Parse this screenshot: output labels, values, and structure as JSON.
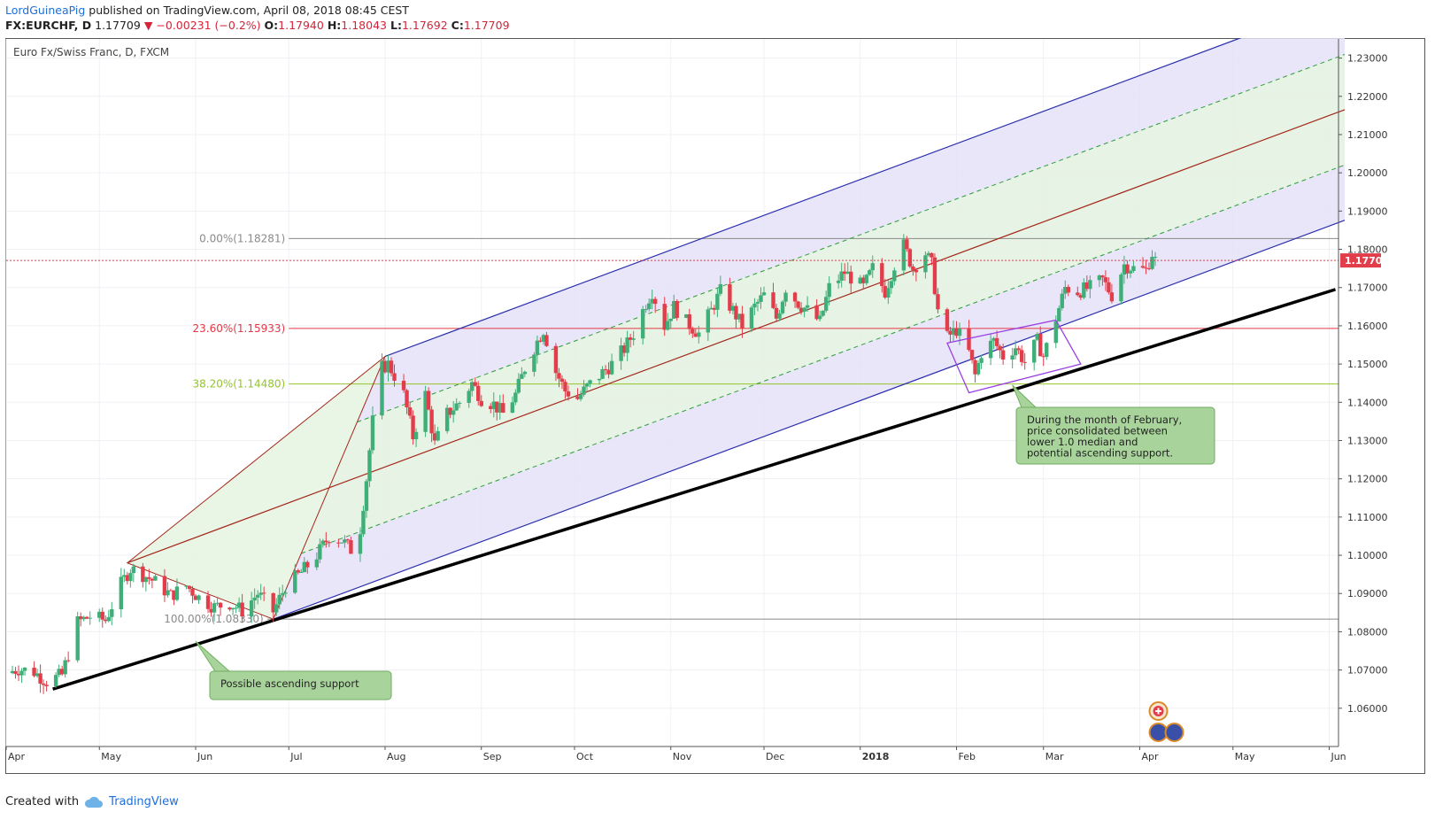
{
  "header": {
    "author": "LordGuineaPig",
    "published_text": " published on TradingView.com, April 08, 2018 08:45 CEST",
    "symbol": "FX:EURCHF, D",
    "last": "1.17709",
    "change": "▼ −0.00231 (−0.2%)",
    "o_label": "O:",
    "o": "1.17940",
    "h_label": "H:",
    "h": "1.18043",
    "l_label": "L:",
    "l": "1.17692",
    "c_label": "C:",
    "c": "1.17709"
  },
  "footer": {
    "created_with": "Created with",
    "brand": "TradingView"
  },
  "colors": {
    "up": "#3fae78",
    "down": "#e23d4a",
    "pitchfork_outer": "#2a2fae",
    "pitchfork_median": "#a3271b",
    "pitchfork_inner": "#2e9e3a",
    "fill_outer": "#e4e2f7",
    "fill_inner": "#e6f5e1",
    "fib_0": "#8a8a8a",
    "fib_236": "#e63745",
    "fib_382": "#93c42d",
    "fib_100": "#8a8a8a",
    "price_badge": "#e23d4a",
    "annotation_bg": "#a8d49b",
    "annotation_border": "#6fae5f",
    "consolidation_box": "#9a3ee3"
  },
  "chart_data": {
    "type": "candlestick",
    "title": "Euro Fx/Swiss Franc, D, FXCM",
    "timeframe": "D",
    "x_range": [
      "2017-04-01",
      "2018-06-04"
    ],
    "y_range": [
      1.05,
      1.235
    ],
    "y_ticks": [
      "1.23000",
      "1.22000",
      "1.21000",
      "1.20000",
      "1.19000",
      "1.18000",
      "1.17000",
      "1.16000",
      "1.15000",
      "1.14000",
      "1.13000",
      "1.12000",
      "1.11000",
      "1.10000",
      "1.09000",
      "1.08000",
      "1.07000",
      "1.06000"
    ],
    "x_ticks": [
      {
        "label": "Apr",
        "date": "2017-04-01"
      },
      {
        "label": "May",
        "date": "2017-05-01"
      },
      {
        "label": "Jun",
        "date": "2017-06-01"
      },
      {
        "label": "Jul",
        "date": "2017-07-01"
      },
      {
        "label": "Aug",
        "date": "2017-08-01"
      },
      {
        "label": "Sep",
        "date": "2017-09-01"
      },
      {
        "label": "Oct",
        "date": "2017-10-01"
      },
      {
        "label": "Nov",
        "date": "2017-11-01"
      },
      {
        "label": "Dec",
        "date": "2017-12-01"
      },
      {
        "label": "2018",
        "date": "2018-01-01"
      },
      {
        "label": "Feb",
        "date": "2018-02-01"
      },
      {
        "label": "Mar",
        "date": "2018-03-01"
      },
      {
        "label": "Apr",
        "date": "2018-04-01"
      },
      {
        "label": "May",
        "date": "2018-05-01"
      },
      {
        "label": "Jun",
        "date": "2018-06-01"
      }
    ],
    "close_path": [
      [
        "2017-04-01",
        1.0692
      ],
      [
        "2017-04-05",
        1.0703
      ],
      [
        "2017-04-10",
        1.0695
      ],
      [
        "2017-04-14",
        1.067
      ],
      [
        "2017-04-19",
        1.0687
      ],
      [
        "2017-04-24",
        1.0825
      ],
      [
        "2017-04-28",
        1.084
      ],
      [
        "2017-05-03",
        1.083
      ],
      [
        "2017-05-08",
        1.0925
      ],
      [
        "2017-05-11",
        1.0965
      ],
      [
        "2017-05-15",
        1.095
      ],
      [
        "2017-05-19",
        1.093
      ],
      [
        "2017-05-24",
        1.0895
      ],
      [
        "2017-05-29",
        1.092
      ],
      [
        "2017-06-02",
        1.089
      ],
      [
        "2017-06-07",
        1.0865
      ],
      [
        "2017-06-12",
        1.0875
      ],
      [
        "2017-06-16",
        1.0855
      ],
      [
        "2017-06-21",
        1.09
      ],
      [
        "2017-06-26",
        1.0853
      ],
      [
        "2017-06-30",
        1.092
      ],
      [
        "2017-07-05",
        1.0955
      ],
      [
        "2017-07-10",
        1.1
      ],
      [
        "2017-07-14",
        1.105
      ],
      [
        "2017-07-18",
        1.104
      ],
      [
        "2017-07-21",
        1.1015
      ],
      [
        "2017-07-24",
        1.107
      ],
      [
        "2017-07-26",
        1.12
      ],
      [
        "2017-07-28",
        1.135
      ],
      [
        "2017-07-31",
        1.149
      ],
      [
        "2017-08-02",
        1.15
      ],
      [
        "2017-08-04",
        1.147
      ],
      [
        "2017-08-07",
        1.142
      ],
      [
        "2017-08-10",
        1.131
      ],
      [
        "2017-08-14",
        1.142
      ],
      [
        "2017-08-17",
        1.129
      ],
      [
        "2017-08-21",
        1.137
      ],
      [
        "2017-08-25",
        1.14
      ],
      [
        "2017-08-29",
        1.145
      ],
      [
        "2017-09-01",
        1.141
      ],
      [
        "2017-09-05",
        1.1395
      ],
      [
        "2017-09-08",
        1.137
      ],
      [
        "2017-09-12",
        1.142
      ],
      [
        "2017-09-15",
        1.149
      ],
      [
        "2017-09-19",
        1.156
      ],
      [
        "2017-09-21",
        1.159
      ],
      [
        "2017-09-25",
        1.148
      ],
      [
        "2017-09-28",
        1.143
      ],
      [
        "2017-10-02",
        1.141
      ],
      [
        "2017-10-05",
        1.144
      ],
      [
        "2017-10-09",
        1.147
      ],
      [
        "2017-10-13",
        1.15
      ],
      [
        "2017-10-17",
        1.154
      ],
      [
        "2017-10-20",
        1.158
      ],
      [
        "2017-10-24",
        1.166
      ],
      [
        "2017-10-26",
        1.169
      ],
      [
        "2017-10-30",
        1.16
      ],
      [
        "2017-11-02",
        1.165
      ],
      [
        "2017-11-06",
        1.161
      ],
      [
        "2017-11-10",
        1.158
      ],
      [
        "2017-11-14",
        1.164
      ],
      [
        "2017-11-17",
        1.169
      ],
      [
        "2017-11-21",
        1.164
      ],
      [
        "2017-11-24",
        1.16
      ],
      [
        "2017-11-28",
        1.165
      ],
      [
        "2017-12-01",
        1.168
      ],
      [
        "2017-12-05",
        1.162
      ],
      [
        "2017-12-08",
        1.17
      ],
      [
        "2017-12-12",
        1.166
      ],
      [
        "2017-12-15",
        1.164
      ],
      [
        "2017-12-19",
        1.161
      ],
      [
        "2017-12-22",
        1.17
      ],
      [
        "2017-12-27",
        1.174
      ],
      [
        "2018-01-02",
        1.17
      ],
      [
        "2018-01-05",
        1.175
      ],
      [
        "2018-01-09",
        1.169
      ],
      [
        "2018-01-12",
        1.176
      ],
      [
        "2018-01-15",
        1.181
      ],
      [
        "2018-01-18",
        1.175
      ],
      [
        "2018-01-22",
        1.179
      ],
      [
        "2018-01-24",
        1.176
      ],
      [
        "2018-01-26",
        1.164
      ],
      [
        "2018-01-29",
        1.157
      ],
      [
        "2018-02-01",
        1.159
      ],
      [
        "2018-02-05",
        1.153
      ],
      [
        "2018-02-07",
        1.147
      ],
      [
        "2018-02-09",
        1.153
      ],
      [
        "2018-02-13",
        1.156
      ],
      [
        "2018-02-16",
        1.152
      ],
      [
        "2018-02-20",
        1.1545
      ],
      [
        "2018-02-23",
        1.1505
      ],
      [
        "2018-02-27",
        1.156
      ],
      [
        "2018-03-01",
        1.152
      ],
      [
        "2018-03-05",
        1.162
      ],
      [
        "2018-03-08",
        1.17
      ],
      [
        "2018-03-12",
        1.169
      ],
      [
        "2018-03-16",
        1.17
      ],
      [
        "2018-03-20",
        1.172
      ],
      [
        "2018-03-23",
        1.168
      ],
      [
        "2018-03-27",
        1.176
      ],
      [
        "2018-03-30",
        1.175
      ],
      [
        "2018-04-03",
        1.1745
      ],
      [
        "2018-04-05",
        1.179
      ],
      [
        "2018-04-06",
        1.1771
      ]
    ],
    "last_price_label": "1.17709",
    "last_price": 1.17709,
    "fib_levels": [
      {
        "label": "0.00%(1.18281)",
        "value": 1.18281
      },
      {
        "label": "23.60%(1.15933)",
        "value": 1.15933
      },
      {
        "label": "38.20%(1.14480)",
        "value": 1.1448
      },
      {
        "label": "100.00%(1.08330)",
        "value": 1.0833
      }
    ],
    "pitchfork": {
      "p1": [
        "2017-05-10",
        1.098
      ],
      "p2": [
        "2017-08-01",
        1.152
      ],
      "p3": [
        "2017-06-26",
        1.0833
      ],
      "median_end": [
        "2018-06-03",
        1.2155
      ]
    },
    "support_line": {
      "start": [
        "2017-04-16",
        1.065
      ],
      "end": [
        "2018-06-03",
        1.1695
      ]
    },
    "consolidation_box": [
      [
        "2018-01-29",
        1.1555
      ],
      [
        "2018-03-05",
        1.1615
      ],
      [
        "2018-03-13",
        1.15
      ],
      [
        "2018-02-05",
        1.1425
      ]
    ],
    "annotations": [
      {
        "text": "Possible ascending support",
        "anchor": [
          "2017-06-01",
          1.0775
        ]
      },
      {
        "text": "During the month of February,\nprice consolidated between\nlower 1.0 median and\npotential ascending support.",
        "anchor": [
          "2018-02-19",
          1.1445
        ]
      }
    ],
    "grid": true,
    "legend": "none"
  }
}
